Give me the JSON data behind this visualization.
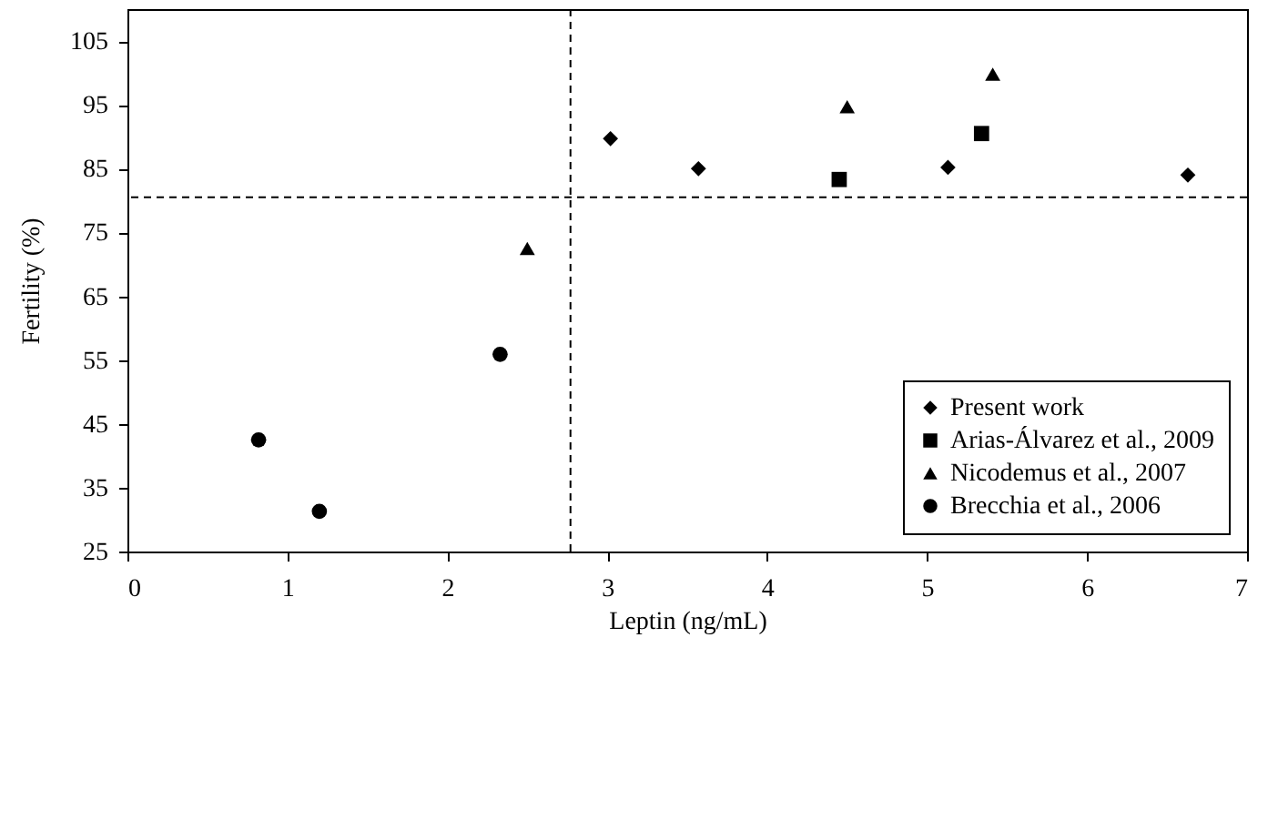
{
  "chart_data": {
    "type": "scatter",
    "xlabel": "Leptin (ng/mL)",
    "ylabel": "Fertility (%)",
    "xlim": [
      0,
      7
    ],
    "xticks": [
      0,
      1,
      2,
      3,
      4,
      5,
      6,
      7
    ],
    "ylim": [
      25,
      110
    ],
    "yticks": [
      25,
      35,
      45,
      55,
      65,
      75,
      85,
      95,
      105
    ],
    "grid": false,
    "legend": "bottom right",
    "series": [
      {
        "name": "Present work",
        "color": "#000000",
        "marker": "diamond",
        "x": [
          3.02,
          3.57,
          5.13,
          6.63
        ],
        "values": [
          89.7,
          85,
          85.2,
          84
        ]
      },
      {
        "name": "Arias-Álvarez et al., 2009",
        "color": "#000000",
        "marker": "square",
        "x": [
          4.45,
          5.34
        ],
        "values": [
          83.3,
          90.5
        ]
      },
      {
        "name": "Nicodemus et al., 2007",
        "color": "#000000",
        "marker": "triangle",
        "x": [
          2.5,
          4.5,
          5.41
        ],
        "values": [
          72.5,
          94.7,
          99.8
        ]
      },
      {
        "name": "Brecchia et al., 2006",
        "color": "#000000",
        "marker": "circle",
        "x": [
          0.82,
          1.2,
          2.33
        ],
        "values": [
          42.5,
          31.3,
          55.9
        ]
      }
    ],
    "ref_lines": [
      {
        "axis": "x",
        "value": 2.77,
        "line_style": "dashed"
      },
      {
        "axis": "y",
        "value": 80.5,
        "line_style": "dashed"
      }
    ]
  }
}
